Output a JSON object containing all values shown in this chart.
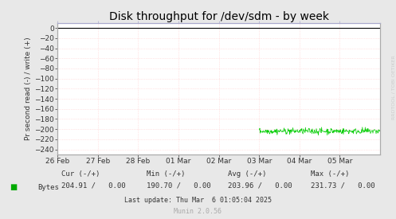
{
  "title": "Disk throughput for /dev/sdm - by week",
  "ylabel": "Pr second read (-) / write (+)",
  "background_color": "#e8e8e8",
  "plot_bg_color": "#ffffff",
  "grid_color_h": "#ffcccc",
  "grid_color_v": "#ffcccc",
  "border_color": "#aaaaaa",
  "top_border_color": "#aaaacc",
  "ylim": [
    -250,
    10
  ],
  "yticks": [
    0,
    -20,
    -40,
    -60,
    -80,
    -100,
    -120,
    -140,
    -160,
    -180,
    -200,
    -220,
    -240
  ],
  "xticklabels": [
    "26 Feb",
    "27 Feb",
    "28 Feb",
    "01 Mar",
    "02 Mar",
    "03 Mar",
    "04 Mar",
    "05 Mar"
  ],
  "line_color": "#00cc00",
  "line_color_zero": "#000000",
  "legend_label": "Bytes",
  "legend_color": "#00aa00",
  "cur_label": "Cur (-/+)",
  "min_label": "Min (-/+)",
  "avg_label": "Avg (-/+)",
  "max_label": "Max (-/+)",
  "cur_val": "204.91 /   0.00",
  "min_val": "190.70 /   0.00",
  "avg_val": "203.96 /   0.00",
  "max_val": "231.73 /   0.00",
  "last_update": "Last update: Thu Mar  6 01:05:04 2025",
  "munin_label": "Munin 2.0.56",
  "rrdtool_label": "RRDTOOL / TOBI OETIKER",
  "title_fontsize": 10,
  "axis_fontsize": 6.5,
  "legend_fontsize": 6.5,
  "footer_fontsize": 6
}
